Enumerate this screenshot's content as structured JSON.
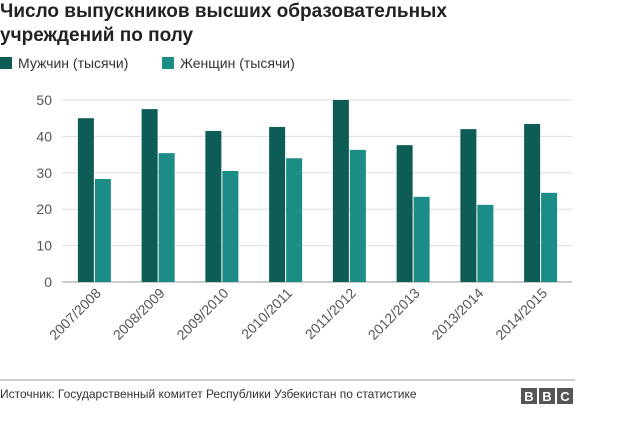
{
  "chart_data": {
    "type": "bar",
    "title": "Число выпускников высших образовательных учреждений по полу",
    "categories": [
      "2007/2008",
      "2008/2009",
      "2009/2010",
      "2010/2011",
      "2011/2012",
      "2012/2013",
      "2013/2014",
      "2014/2015"
    ],
    "series": [
      {
        "name": "Мужчин (тысячи)",
        "color": "#0e5c56",
        "values": [
          45,
          47.5,
          41.5,
          42.6,
          50,
          37.6,
          42,
          43.4
        ]
      },
      {
        "name": "Женщин (тысячи)",
        "color": "#1b8c86",
        "values": [
          28.3,
          35.4,
          30.5,
          34,
          36.3,
          23.4,
          21.2,
          24.5
        ]
      }
    ],
    "ylim": [
      0,
      50
    ],
    "yticks": [
      0,
      10,
      20,
      30,
      40,
      50
    ],
    "grid": true,
    "source": "Источник: Государственный комитет Республики Узбекистан по статистике",
    "logo": [
      "B",
      "B",
      "C"
    ]
  }
}
